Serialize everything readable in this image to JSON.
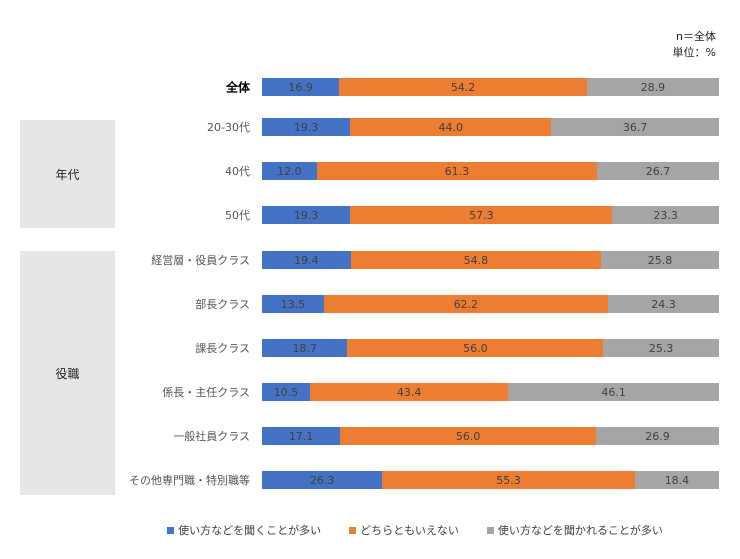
{
  "chart_data": {
    "type": "bar",
    "orientation": "horizontal-stacked-100",
    "notes": [
      "n＝全体",
      "単位：%"
    ],
    "groups": [
      {
        "label": "年代",
        "rows": [
          1,
          2,
          3
        ]
      },
      {
        "label": "役職",
        "rows": [
          4,
          5,
          6,
          7,
          8,
          9
        ]
      }
    ],
    "categories": [
      "全体",
      "20-30代",
      "40代",
      "50代",
      "経営層・役員クラス",
      "部長クラス",
      "課長クラス",
      "係長・主任クラス",
      "一般社員クラス",
      "その他専門職・特別職等"
    ],
    "series": [
      {
        "name": "使い方などを聞くことが多い",
        "color": "#4472c4",
        "values": [
          16.9,
          19.3,
          12.0,
          19.3,
          19.4,
          13.5,
          18.7,
          10.5,
          17.1,
          26.3
        ]
      },
      {
        "name": "どちらともいえない",
        "color": "#ed7d31",
        "values": [
          54.2,
          44.0,
          61.3,
          57.3,
          54.8,
          62.2,
          56.0,
          43.4,
          56.0,
          55.3
        ]
      },
      {
        "name": "使い方などを聞かれることが多い",
        "color": "#a5a5a5",
        "values": [
          28.9,
          36.7,
          26.7,
          23.3,
          25.8,
          24.3,
          25.3,
          46.1,
          26.9,
          18.4
        ]
      }
    ],
    "xlim": [
      0,
      100
    ],
    "legend": "bottom"
  }
}
